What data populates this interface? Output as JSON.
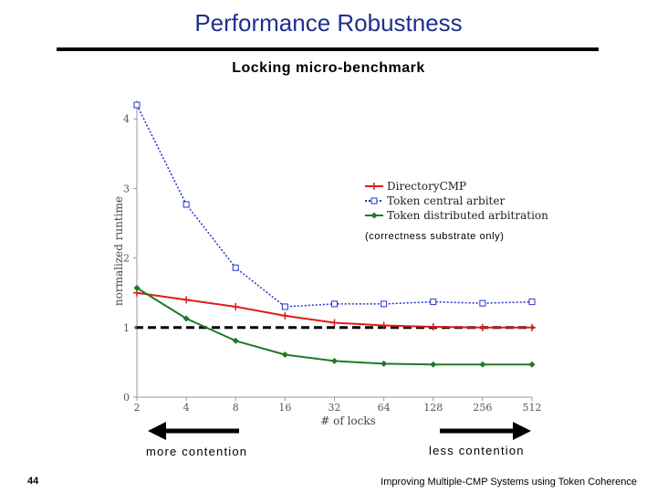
{
  "slide": {
    "title": "Performance Robustness",
    "page_number": "44",
    "footer": "Improving Multiple-CMP Systems using Token Coherence",
    "left_note": "more contention",
    "right_note": "less contention"
  },
  "chart_data": {
    "type": "line",
    "title": "Locking micro-benchmark",
    "xlabel": "# of locks",
    "ylabel": "normalized runtime",
    "x": [
      2,
      4,
      8,
      16,
      32,
      64,
      128,
      256,
      512
    ],
    "x_scale": "log2",
    "ylim": [
      0,
      4.2
    ],
    "yticks": [
      0,
      1,
      2,
      3,
      4
    ],
    "reference_line": 1,
    "grid": false,
    "legend_position": "right",
    "legend_note": "(correctness substrate only)",
    "series": [
      {
        "name": "DirectoryCMP",
        "color": "#e21a1a",
        "marker": "plus",
        "dash": "solid",
        "values": [
          1.5,
          1.4,
          1.3,
          1.17,
          1.07,
          1.03,
          1.01,
          1.0,
          1.0
        ]
      },
      {
        "name": "Token central arbiter",
        "color": "#2233cc",
        "marker": "square",
        "dash": "dotted",
        "values": [
          4.2,
          2.77,
          1.86,
          1.3,
          1.34,
          1.34,
          1.37,
          1.35,
          1.37
        ]
      },
      {
        "name": "Token distributed arbitration",
        "color": "#1e7a24",
        "marker": "diamond",
        "dash": "solid",
        "values": [
          1.57,
          1.13,
          0.81,
          0.61,
          0.52,
          0.48,
          0.47,
          0.47,
          0.47
        ]
      }
    ]
  }
}
